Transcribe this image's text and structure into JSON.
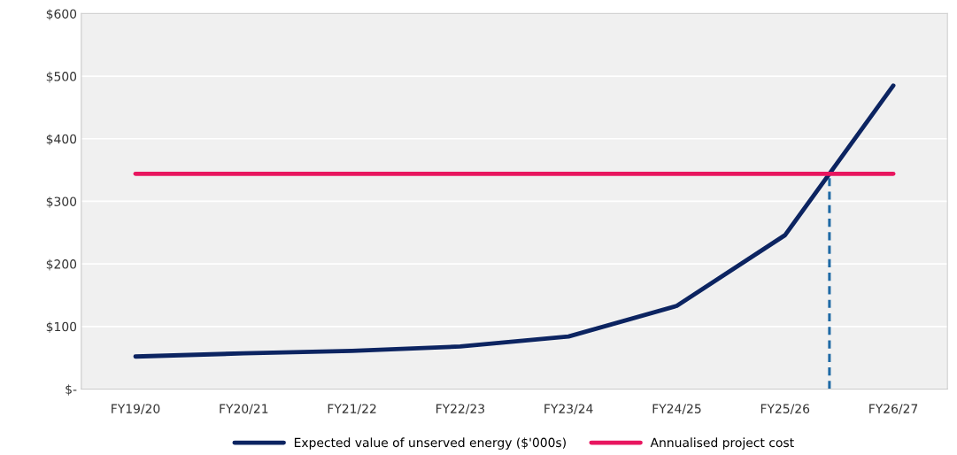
{
  "chart_data": {
    "type": "line",
    "categories": [
      "FY19/20",
      "FY20/21",
      "FY21/22",
      "FY22/23",
      "FY23/24",
      "FY24/25",
      "FY25/26",
      "FY26/27"
    ],
    "series": [
      {
        "name": "Expected value of unserved energy ($'000s)",
        "color": "#0c2461",
        "values": [
          52,
          57,
          61,
          68,
          84,
          133,
          246,
          485
        ]
      },
      {
        "name": "Annualised project cost",
        "color": "#e8165f",
        "values": [
          344,
          344,
          344,
          344,
          344,
          344,
          344,
          344
        ]
      }
    ],
    "ylim": [
      0,
      600
    ],
    "yticks": [
      {
        "value": 0,
        "label": "$-"
      },
      {
        "value": 100,
        "label": "$100"
      },
      {
        "value": 200,
        "label": "$200"
      },
      {
        "value": 300,
        "label": "$300"
      },
      {
        "value": 400,
        "label": "$400"
      },
      {
        "value": 500,
        "label": "$500"
      },
      {
        "value": 600,
        "label": "$600"
      }
    ],
    "grid": "y",
    "legend": "bottom",
    "marker": "none"
  }
}
